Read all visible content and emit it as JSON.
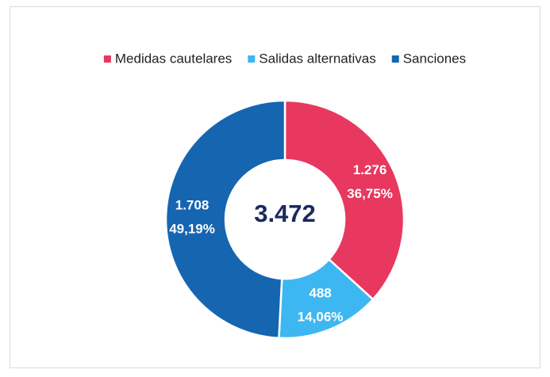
{
  "chart_data": {
    "type": "donut",
    "categories": [
      "Medidas cautelares",
      "Salidas alternativas",
      "Sanciones"
    ],
    "values": [
      1276,
      488,
      1708
    ],
    "value_labels": [
      "1.276",
      "488",
      "1.708"
    ],
    "percent_labels": [
      "36,75%",
      "14,06%",
      "49,19%"
    ],
    "colors": [
      "#e8385f",
      "#3db7f1",
      "#1565b1"
    ],
    "center_label": "3.472",
    "legend": "top"
  }
}
